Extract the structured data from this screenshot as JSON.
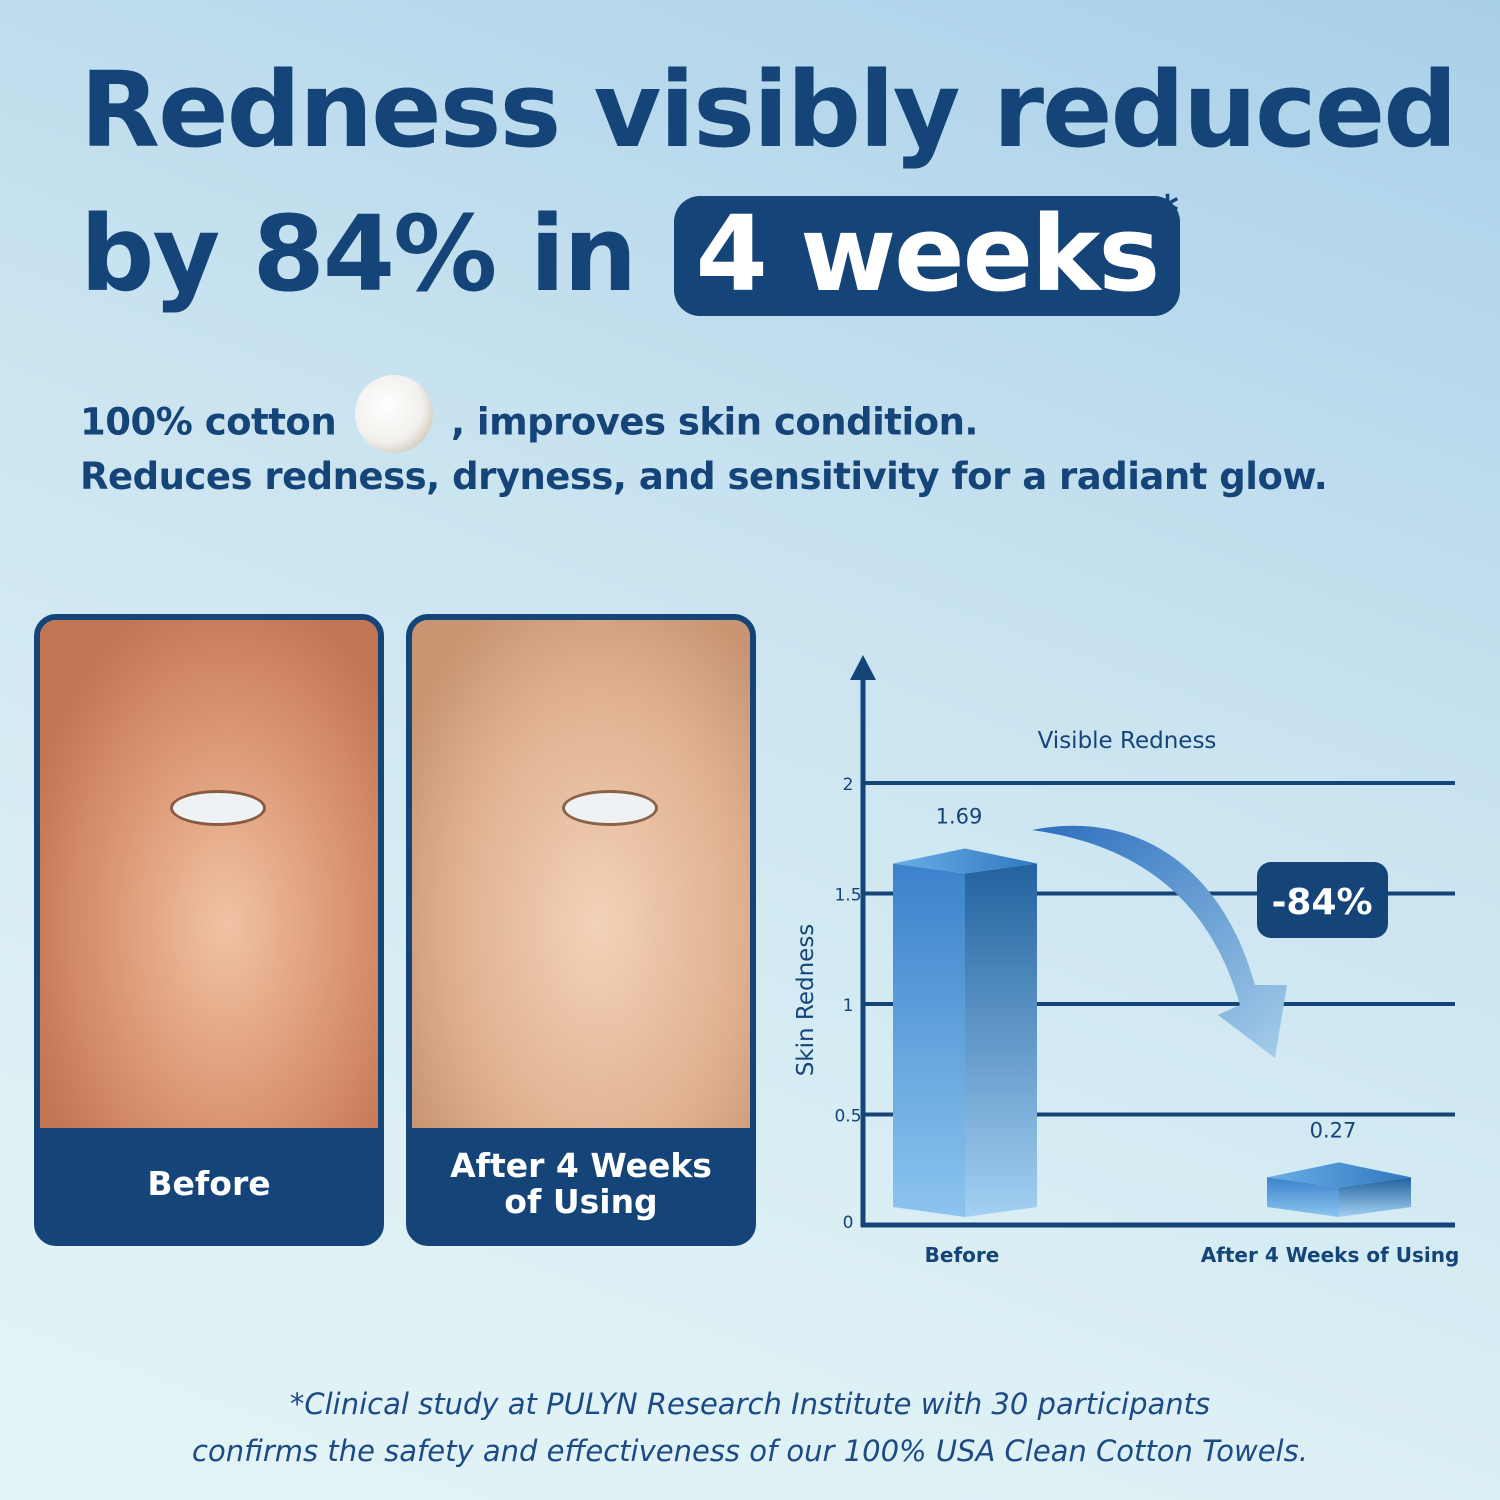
{
  "headline": {
    "line1": "Redness visibly reduced",
    "line2_prefix": "by 84% in",
    "highlight": "4 weeks",
    "asterisk": "*"
  },
  "subtitle": {
    "part1": "100% cotton",
    "part2": ", improves skin condition.",
    "line2": "Reduces redness, dryness, and sensitivity for a radiant glow.",
    "icon": "cotton-boll-icon"
  },
  "photos": [
    {
      "label": "Before"
    },
    {
      "label_line1": "After 4 Weeks",
      "label_line2": "of Using"
    }
  ],
  "chart_data": {
    "type": "bar",
    "title": "Visible Redness",
    "ylabel": "Skin Redness",
    "categories": [
      "Before",
      "After 4 Weeks of Using"
    ],
    "values": [
      1.69,
      0.27
    ],
    "value_labels": [
      "1.69",
      "0.27"
    ],
    "ylim": [
      0,
      2
    ],
    "yticks": [
      "0",
      "0.5",
      "1",
      "1.5",
      "2"
    ],
    "grid": true,
    "annotation": "-84%"
  },
  "footnote": {
    "line1": "*Clinical study at PULYN Research Institute with 30 participants",
    "line2": "confirms the safety and effectiveness of our 100% USA Clean Cotton Towels."
  },
  "colors": {
    "navy": "#154479",
    "bar": "#3a82cc",
    "bar_light": "#8cc4ee"
  }
}
